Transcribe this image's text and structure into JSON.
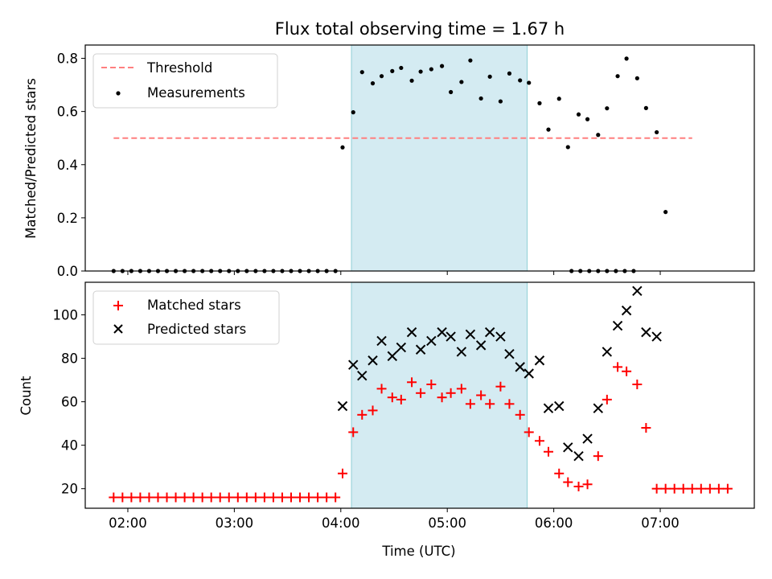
{
  "chart_data": [
    {
      "type": "scatter",
      "title": "Flux total observing time = 1.67 h",
      "xlabel": "",
      "ylabel": "Matched/Predicted stars",
      "ylim": [
        0,
        0.85
      ],
      "yticks": [
        "0.0",
        "0.2",
        "0.4",
        "0.6",
        "0.8"
      ],
      "x_tick_labels": [
        "02:00",
        "03:00",
        "04:00",
        "05:00",
        "06:00",
        "07:00"
      ],
      "xlim": [
        "01:36",
        "07:53"
      ],
      "highlight_band": [
        "04:06",
        "05:45"
      ],
      "legend_position": "upper left",
      "threshold": {
        "name": "Threshold",
        "value": 0.5,
        "x_range": [
          "01:52",
          "07:18"
        ],
        "color": "#ff7f7f"
      },
      "series": [
        {
          "name": "Measurements",
          "color": "#000000",
          "marker": "dot",
          "points": [
            [
              "01:52",
              0.0
            ],
            [
              "01:57",
              0.0
            ],
            [
              "02:02",
              0.0
            ],
            [
              "02:07",
              0.0
            ],
            [
              "02:12",
              0.0
            ],
            [
              "02:17",
              0.0
            ],
            [
              "02:22",
              0.0
            ],
            [
              "02:27",
              0.0
            ],
            [
              "02:32",
              0.0
            ],
            [
              "02:37",
              0.0
            ],
            [
              "02:42",
              0.0
            ],
            [
              "02:47",
              0.0
            ],
            [
              "02:52",
              0.0
            ],
            [
              "02:57",
              0.0
            ],
            [
              "03:02",
              0.0
            ],
            [
              "03:07",
              0.0
            ],
            [
              "03:12",
              0.0
            ],
            [
              "03:17",
              0.0
            ],
            [
              "03:22",
              0.0
            ],
            [
              "03:27",
              0.0
            ],
            [
              "03:32",
              0.0
            ],
            [
              "03:37",
              0.0
            ],
            [
              "03:42",
              0.0
            ],
            [
              "03:47",
              0.0
            ],
            [
              "03:52",
              0.0
            ],
            [
              "03:57",
              0.0
            ],
            [
              "04:01",
              0.465
            ],
            [
              "04:07",
              0.597
            ],
            [
              "04:12",
              0.748
            ],
            [
              "04:18",
              0.706
            ],
            [
              "04:23",
              0.733
            ],
            [
              "04:29",
              0.752
            ],
            [
              "04:34",
              0.764
            ],
            [
              "04:40",
              0.716
            ],
            [
              "04:45",
              0.75
            ],
            [
              "04:51",
              0.759
            ],
            [
              "04:57",
              0.771
            ],
            [
              "05:02",
              0.673
            ],
            [
              "05:08",
              0.711
            ],
            [
              "05:13",
              0.792
            ],
            [
              "05:19",
              0.649
            ],
            [
              "05:24",
              0.731
            ],
            [
              "05:30",
              0.638
            ],
            [
              "05:35",
              0.743
            ],
            [
              "05:41",
              0.717
            ],
            [
              "05:46",
              0.708
            ],
            [
              "05:52",
              0.631
            ],
            [
              "05:57",
              0.532
            ],
            [
              "06:03",
              0.648
            ],
            [
              "06:08",
              0.466
            ],
            [
              "06:14",
              0.589
            ],
            [
              "06:19",
              0.571
            ],
            [
              "06:25",
              0.512
            ],
            [
              "06:30",
              0.612
            ],
            [
              "06:36",
              0.733
            ],
            [
              "06:41",
              0.799
            ],
            [
              "06:47",
              0.725
            ],
            [
              "06:52",
              0.613
            ],
            [
              "06:58",
              0.522
            ],
            [
              "07:03",
              0.222
            ],
            [
              "06:10",
              0.0
            ],
            [
              "06:15",
              0.0
            ],
            [
              "06:20",
              0.0
            ],
            [
              "06:25",
              0.0
            ],
            [
              "06:30",
              0.0
            ],
            [
              "06:35",
              0.0
            ],
            [
              "06:40",
              0.0
            ],
            [
              "06:45",
              0.0
            ]
          ]
        }
      ]
    },
    {
      "type": "scatter",
      "title": "",
      "xlabel": "Time (UTC)",
      "ylabel": "Count",
      "ylim": [
        11,
        115
      ],
      "yticks": [
        "20",
        "40",
        "60",
        "80",
        "100"
      ],
      "x_tick_labels": [
        "02:00",
        "03:00",
        "04:00",
        "05:00",
        "06:00",
        "07:00"
      ],
      "xlim": [
        "01:36",
        "07:53"
      ],
      "highlight_band": [
        "04:06",
        "05:45"
      ],
      "legend_position": "upper left",
      "series": [
        {
          "name": "Matched stars",
          "color": "#ff0000",
          "marker": "plus",
          "points": [
            [
              "01:52",
              16
            ],
            [
              "01:57",
              16
            ],
            [
              "02:02",
              16
            ],
            [
              "02:07",
              16
            ],
            [
              "02:12",
              16
            ],
            [
              "02:17",
              16
            ],
            [
              "02:22",
              16
            ],
            [
              "02:27",
              16
            ],
            [
              "02:32",
              16
            ],
            [
              "02:37",
              16
            ],
            [
              "02:42",
              16
            ],
            [
              "02:47",
              16
            ],
            [
              "02:52",
              16
            ],
            [
              "02:57",
              16
            ],
            [
              "03:02",
              16
            ],
            [
              "03:07",
              16
            ],
            [
              "03:12",
              16
            ],
            [
              "03:17",
              16
            ],
            [
              "03:22",
              16
            ],
            [
              "03:27",
              16
            ],
            [
              "03:32",
              16
            ],
            [
              "03:37",
              16
            ],
            [
              "03:42",
              16
            ],
            [
              "03:47",
              16
            ],
            [
              "03:52",
              16
            ],
            [
              "03:57",
              16
            ],
            [
              "04:01",
              27
            ],
            [
              "04:07",
              46
            ],
            [
              "04:12",
              54
            ],
            [
              "04:18",
              56
            ],
            [
              "04:23",
              66
            ],
            [
              "04:29",
              62
            ],
            [
              "04:34",
              61
            ],
            [
              "04:40",
              69
            ],
            [
              "04:45",
              64
            ],
            [
              "04:51",
              68
            ],
            [
              "04:57",
              62
            ],
            [
              "05:02",
              64
            ],
            [
              "05:08",
              66
            ],
            [
              "05:13",
              59
            ],
            [
              "05:19",
              63
            ],
            [
              "05:24",
              59
            ],
            [
              "05:30",
              67
            ],
            [
              "05:35",
              59
            ],
            [
              "05:41",
              54
            ],
            [
              "05:46",
              46
            ],
            [
              "05:52",
              42
            ],
            [
              "05:57",
              37
            ],
            [
              "06:03",
              27
            ],
            [
              "06:08",
              23
            ],
            [
              "06:14",
              21
            ],
            [
              "06:19",
              22
            ],
            [
              "06:25",
              35
            ],
            [
              "06:30",
              61
            ],
            [
              "06:36",
              76
            ],
            [
              "06:41",
              74
            ],
            [
              "06:47",
              68
            ],
            [
              "06:52",
              48
            ],
            [
              "06:58",
              20
            ],
            [
              "07:03",
              20
            ],
            [
              "07:08",
              20
            ],
            [
              "07:13",
              20
            ],
            [
              "07:18",
              20
            ],
            [
              "07:23",
              20
            ],
            [
              "07:28",
              20
            ],
            [
              "07:33",
              20
            ],
            [
              "07:38",
              20
            ]
          ]
        },
        {
          "name": "Predicted stars",
          "color": "#000000",
          "marker": "x",
          "points": [
            [
              "04:01",
              58
            ],
            [
              "04:07",
              77
            ],
            [
              "04:12",
              72
            ],
            [
              "04:18",
              79
            ],
            [
              "04:23",
              88
            ],
            [
              "04:29",
              81
            ],
            [
              "04:34",
              85
            ],
            [
              "04:40",
              92
            ],
            [
              "04:45",
              84
            ],
            [
              "04:51",
              88
            ],
            [
              "04:57",
              92
            ],
            [
              "05:02",
              90
            ],
            [
              "05:08",
              83
            ],
            [
              "05:13",
              91
            ],
            [
              "05:19",
              86
            ],
            [
              "05:24",
              92
            ],
            [
              "05:30",
              90
            ],
            [
              "05:35",
              82
            ],
            [
              "05:41",
              76
            ],
            [
              "05:46",
              73
            ],
            [
              "05:52",
              79
            ],
            [
              "05:57",
              57
            ],
            [
              "06:03",
              58
            ],
            [
              "06:08",
              39
            ],
            [
              "06:14",
              35
            ],
            [
              "06:19",
              43
            ],
            [
              "06:25",
              57
            ],
            [
              "06:30",
              83
            ],
            [
              "06:36",
              95
            ],
            [
              "06:41",
              102
            ],
            [
              "06:47",
              111
            ],
            [
              "06:52",
              92
            ],
            [
              "06:58",
              90
            ]
          ]
        }
      ]
    }
  ]
}
